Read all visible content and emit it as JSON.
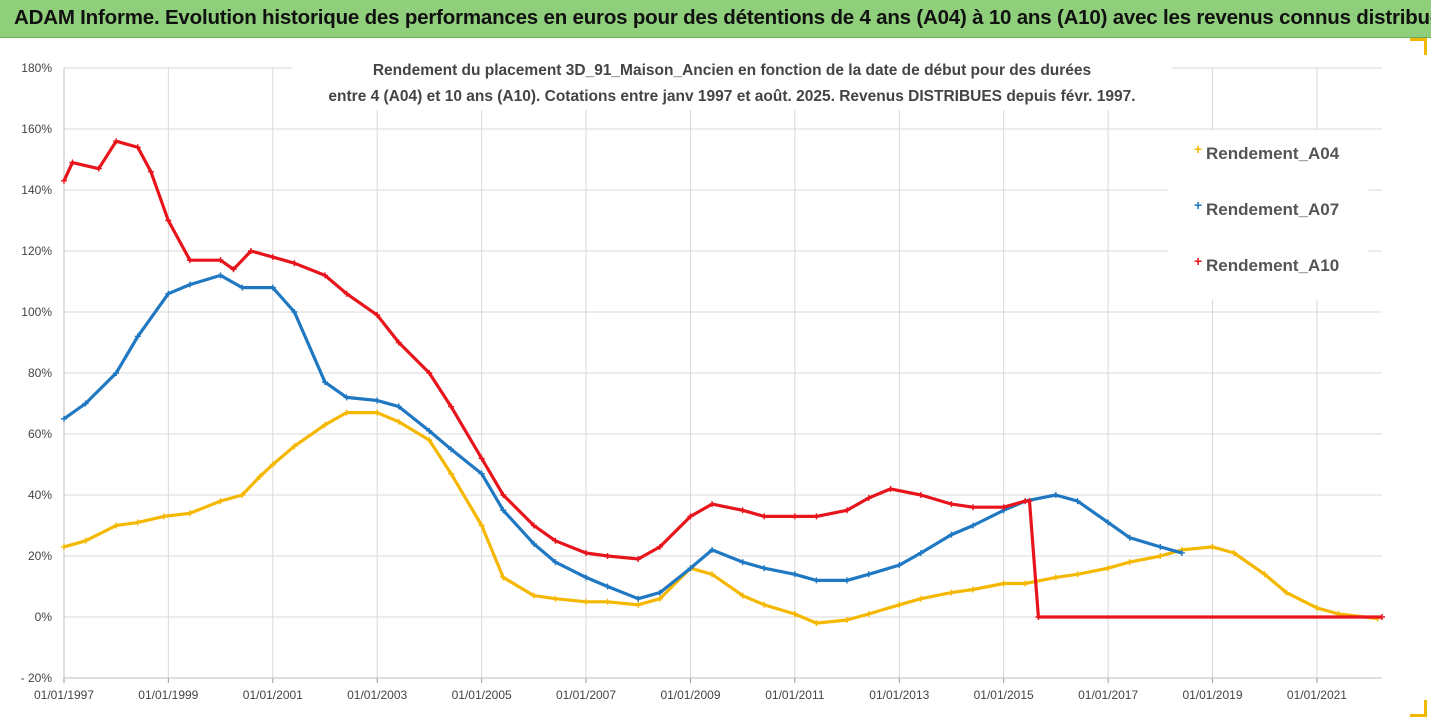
{
  "banner": {
    "title": "ADAM Informe. Evolution historique des performances en euros pour des détentions de 4 ans (A04) à 10 ans (A10) avec les revenus connus distribués"
  },
  "chart_data": {
    "type": "scatter",
    "title_line1": "Rendement du placement 3D_91_Maison_Ancien en fonction de la date de début pour des durées",
    "title_line2": "entre 4 (A04) et 10 ans (A10). Cotations entre janv 1997 et août. 2025. Revenus DISTRIBUES depuis févr. 1997.",
    "y_axis": {
      "min": -0.2,
      "max": 1.8,
      "step": 0.2,
      "tick_labels": [
        "- 20%",
        "0%",
        "20%",
        "40%",
        "60%",
        "80%",
        "100%",
        "120%",
        "140%",
        "160%",
        "180%"
      ]
    },
    "x_axis": {
      "min": "1997-01-01",
      "max": "2022-04-01",
      "tick_labels": [
        "01/01/1997",
        "01/01/1999",
        "01/01/2001",
        "01/01/2003",
        "01/01/2005",
        "01/01/2007",
        "01/01/2009",
        "01/01/2011",
        "01/01/2013",
        "01/01/2015",
        "01/01/2017",
        "01/01/2019",
        "01/01/2021"
      ]
    },
    "grid": "vertical and horizontal",
    "legend_position": "right",
    "series": [
      {
        "name": "Rendement_A04",
        "color": "#f5b800",
        "points": [
          [
            "1997-01-01",
            0.23
          ],
          [
            "1997-06-01",
            0.25
          ],
          [
            "1998-01-01",
            0.3
          ],
          [
            "1998-06-01",
            0.31
          ],
          [
            "1998-12-01",
            0.33
          ],
          [
            "1999-06-01",
            0.34
          ],
          [
            "2000-01-01",
            0.38
          ],
          [
            "2000-06-01",
            0.4
          ],
          [
            "2000-10-01",
            0.46
          ],
          [
            "2001-01-01",
            0.5
          ],
          [
            "2001-06-01",
            0.56
          ],
          [
            "2002-01-01",
            0.63
          ],
          [
            "2002-06-01",
            0.67
          ],
          [
            "2003-01-01",
            0.67
          ],
          [
            "2003-06-01",
            0.64
          ],
          [
            "2004-01-01",
            0.58
          ],
          [
            "2004-06-01",
            0.47
          ],
          [
            "2005-01-01",
            0.3
          ],
          [
            "2005-06-01",
            0.13
          ],
          [
            "2006-01-01",
            0.07
          ],
          [
            "2006-06-01",
            0.06
          ],
          [
            "2007-01-01",
            0.05
          ],
          [
            "2007-06-01",
            0.05
          ],
          [
            "2008-01-01",
            0.04
          ],
          [
            "2008-06-01",
            0.06
          ],
          [
            "2009-01-01",
            0.16
          ],
          [
            "2009-06-01",
            0.14
          ],
          [
            "2010-01-01",
            0.07
          ],
          [
            "2010-06-01",
            0.04
          ],
          [
            "2011-01-01",
            0.01
          ],
          [
            "2011-06-01",
            -0.02
          ],
          [
            "2012-01-01",
            -0.01
          ],
          [
            "2012-06-01",
            0.01
          ],
          [
            "2013-01-01",
            0.04
          ],
          [
            "2013-06-01",
            0.06
          ],
          [
            "2014-01-01",
            0.08
          ],
          [
            "2014-06-01",
            0.09
          ],
          [
            "2015-01-01",
            0.11
          ],
          [
            "2015-06-01",
            0.11
          ],
          [
            "2016-01-01",
            0.13
          ],
          [
            "2016-06-01",
            0.14
          ],
          [
            "2017-01-01",
            0.16
          ],
          [
            "2017-06-01",
            0.18
          ],
          [
            "2018-01-01",
            0.2
          ],
          [
            "2018-06-01",
            0.22
          ],
          [
            "2019-01-01",
            0.23
          ],
          [
            "2019-06-01",
            0.21
          ],
          [
            "2020-01-01",
            0.14
          ],
          [
            "2020-06-01",
            0.08
          ],
          [
            "2021-01-01",
            0.03
          ],
          [
            "2021-06-01",
            0.01
          ],
          [
            "2022-03-01",
            -0.005
          ]
        ]
      },
      {
        "name": "Rendement_A07",
        "color": "#1f78c1",
        "points": [
          [
            "1997-01-01",
            0.65
          ],
          [
            "1997-06-01",
            0.7
          ],
          [
            "1998-01-01",
            0.8
          ],
          [
            "1998-06-01",
            0.92
          ],
          [
            "1999-01-01",
            1.06
          ],
          [
            "1999-06-01",
            1.09
          ],
          [
            "2000-01-01",
            1.12
          ],
          [
            "2000-06-01",
            1.08
          ],
          [
            "2001-01-01",
            1.08
          ],
          [
            "2001-06-01",
            1.0
          ],
          [
            "2002-01-01",
            0.77
          ],
          [
            "2002-06-01",
            0.72
          ],
          [
            "2003-01-01",
            0.71
          ],
          [
            "2003-06-01",
            0.69
          ],
          [
            "2004-01-01",
            0.61
          ],
          [
            "2004-06-01",
            0.55
          ],
          [
            "2005-01-01",
            0.47
          ],
          [
            "2005-06-01",
            0.35
          ],
          [
            "2006-01-01",
            0.24
          ],
          [
            "2006-06-01",
            0.18
          ],
          [
            "2007-01-01",
            0.13
          ],
          [
            "2007-06-01",
            0.1
          ],
          [
            "2008-01-01",
            0.06
          ],
          [
            "2008-06-01",
            0.08
          ],
          [
            "2009-01-01",
            0.16
          ],
          [
            "2009-06-01",
            0.22
          ],
          [
            "2010-01-01",
            0.18
          ],
          [
            "2010-06-01",
            0.16
          ],
          [
            "2011-01-01",
            0.14
          ],
          [
            "2011-06-01",
            0.12
          ],
          [
            "2012-01-01",
            0.12
          ],
          [
            "2012-06-01",
            0.14
          ],
          [
            "2013-01-01",
            0.17
          ],
          [
            "2013-06-01",
            0.21
          ],
          [
            "2014-01-01",
            0.27
          ],
          [
            "2014-06-01",
            0.3
          ],
          [
            "2015-01-01",
            0.35
          ],
          [
            "2015-06-01",
            0.38
          ],
          [
            "2016-01-01",
            0.4
          ],
          [
            "2016-06-01",
            0.38
          ],
          [
            "2017-01-01",
            0.31
          ],
          [
            "2017-06-01",
            0.26
          ],
          [
            "2018-01-01",
            0.23
          ],
          [
            "2018-06-01",
            0.21
          ]
        ]
      },
      {
        "name": "Rendement_A10",
        "color": "#e8141c",
        "points": [
          [
            "1997-01-01",
            1.43
          ],
          [
            "1997-03-01",
            1.49
          ],
          [
            "1997-09-01",
            1.47
          ],
          [
            "1998-01-01",
            1.56
          ],
          [
            "1998-06-01",
            1.54
          ],
          [
            "1998-09-01",
            1.46
          ],
          [
            "1999-01-01",
            1.3
          ],
          [
            "1999-06-01",
            1.17
          ],
          [
            "2000-01-01",
            1.17
          ],
          [
            "2000-04-01",
            1.14
          ],
          [
            "2000-08-01",
            1.2
          ],
          [
            "2001-01-01",
            1.18
          ],
          [
            "2001-06-01",
            1.16
          ],
          [
            "2002-01-01",
            1.12
          ],
          [
            "2002-06-01",
            1.06
          ],
          [
            "2003-01-01",
            0.99
          ],
          [
            "2003-06-01",
            0.9
          ],
          [
            "2004-01-01",
            0.8
          ],
          [
            "2004-06-01",
            0.69
          ],
          [
            "2005-01-01",
            0.52
          ],
          [
            "2005-06-01",
            0.4
          ],
          [
            "2006-01-01",
            0.3
          ],
          [
            "2006-06-01",
            0.25
          ],
          [
            "2007-01-01",
            0.21
          ],
          [
            "2007-06-01",
            0.2
          ],
          [
            "2008-01-01",
            0.19
          ],
          [
            "2008-06-01",
            0.23
          ],
          [
            "2009-01-01",
            0.33
          ],
          [
            "2009-06-01",
            0.37
          ],
          [
            "2010-01-01",
            0.35
          ],
          [
            "2010-06-01",
            0.33
          ],
          [
            "2011-01-01",
            0.33
          ],
          [
            "2011-06-01",
            0.33
          ],
          [
            "2012-01-01",
            0.35
          ],
          [
            "2012-06-01",
            0.39
          ],
          [
            "2012-11-01",
            0.42
          ],
          [
            "2013-06-01",
            0.4
          ],
          [
            "2014-01-01",
            0.37
          ],
          [
            "2014-06-01",
            0.36
          ],
          [
            "2015-01-01",
            0.36
          ],
          [
            "2015-06-01",
            0.38
          ],
          [
            "2015-07-01",
            0.38
          ],
          [
            "2015-09-01",
            0.0
          ],
          [
            "2022-04-01",
            0.0
          ]
        ]
      }
    ]
  }
}
